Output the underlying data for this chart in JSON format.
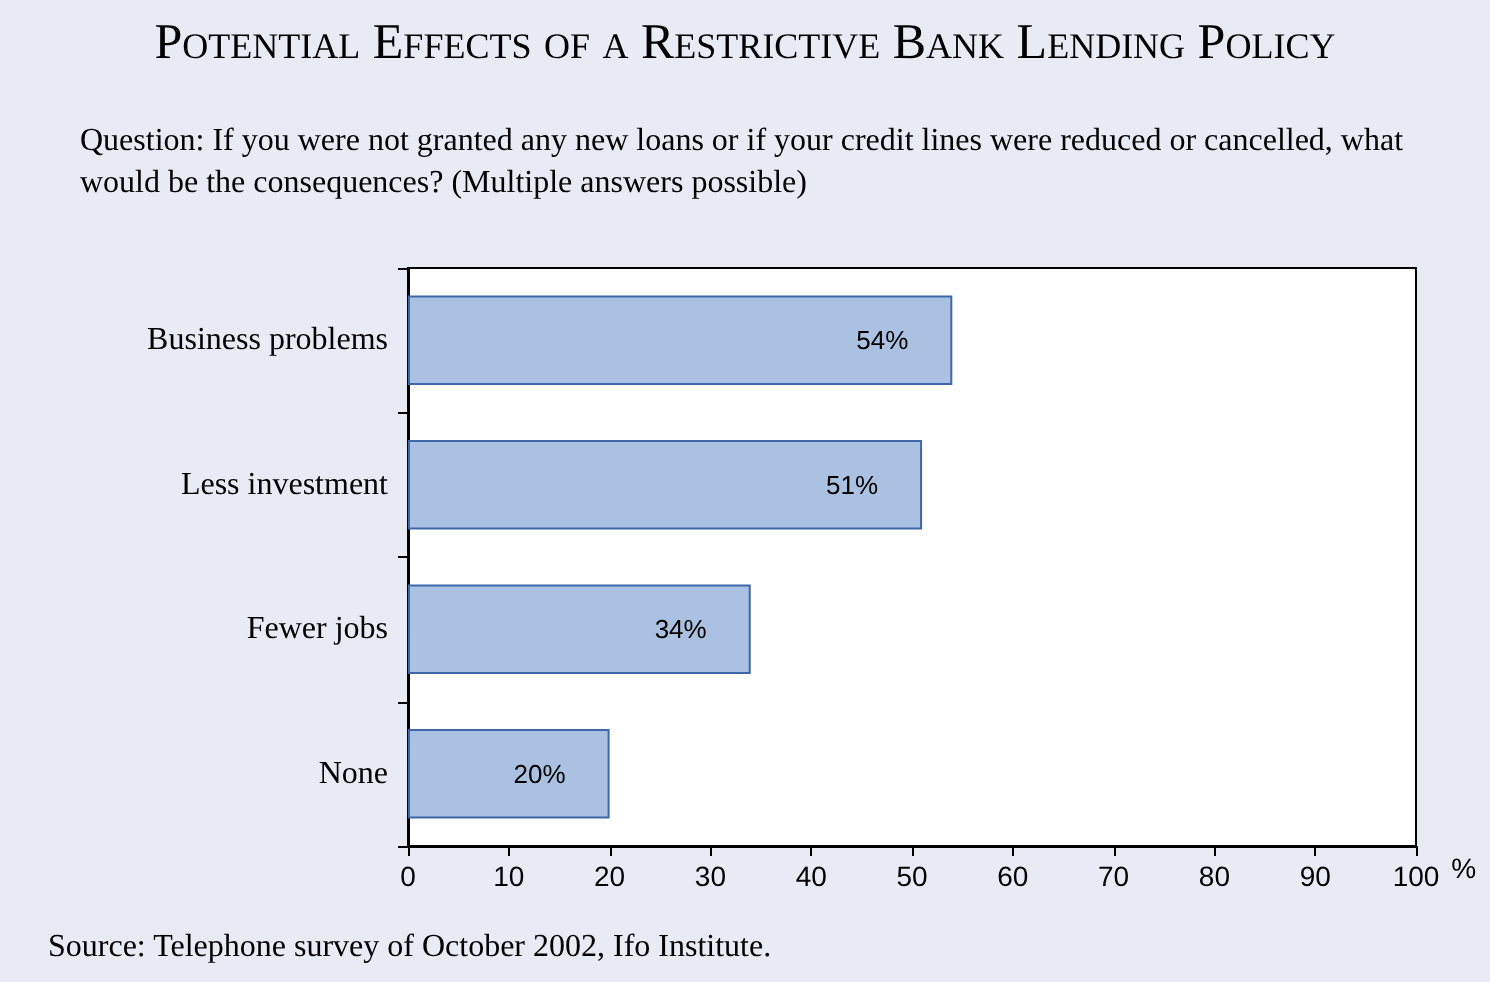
{
  "chart_data": {
    "type": "bar",
    "orientation": "horizontal",
    "title": "Potential Effects of a Restrictive Bank Lending Policy",
    "subtitle": "Question: If you were not granted any new loans or if your credit lines were reduced or cancelled, what would be the consequences? (Multiple answers possible)",
    "categories": [
      "Business problems",
      "Less investment",
      "Fewer jobs",
      "None"
    ],
    "values": [
      54,
      51,
      34,
      20
    ],
    "value_labels": [
      "54%",
      "51%",
      "34%",
      "20%"
    ],
    "color": "#abc1e2",
    "xlabel": "%",
    "xlim": [
      0,
      100
    ],
    "xticks": [
      0,
      10,
      20,
      30,
      40,
      50,
      60,
      70,
      80,
      90,
      100
    ],
    "grid": false,
    "annotations": [
      "Source: Telephone survey of October 2002, Ifo Institute."
    ]
  }
}
